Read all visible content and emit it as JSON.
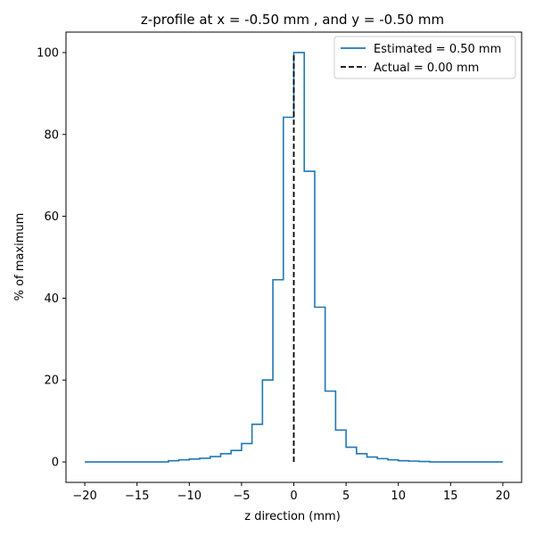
{
  "chart_data": {
    "type": "line",
    "title": "z-profile at x = -0.50 mm , and y = -0.50 mm",
    "xlabel": "z direction (mm)",
    "ylabel": "% of maximum",
    "xlim": [
      -21.8,
      21.8
    ],
    "ylim": [
      -5,
      105
    ],
    "xticks": [
      -20,
      -15,
      -10,
      -5,
      0,
      5,
      10,
      15,
      20
    ],
    "yticks": [
      0,
      20,
      40,
      60,
      80,
      100
    ],
    "grid": false,
    "legend_position": "upper right",
    "series": [
      {
        "name": "Estimated = 0.50 mm",
        "style": "step",
        "color": "#1f77b4",
        "linestyle": "solid",
        "x": [
          -20,
          -19,
          -18,
          -17,
          -16,
          -15,
          -14,
          -13,
          -12,
          -11,
          -10,
          -9,
          -8,
          -7,
          -6,
          -5,
          -4,
          -3,
          -2,
          -1,
          0,
          1,
          2,
          3,
          4,
          5,
          6,
          7,
          8,
          9,
          10,
          11,
          12,
          13,
          14,
          15,
          16,
          17,
          18,
          19,
          20
        ],
        "y": [
          0,
          0,
          0,
          0,
          0,
          0,
          0,
          0,
          0.3,
          0.5,
          0.7,
          0.9,
          1.3,
          2.0,
          2.8,
          4.5,
          9.2,
          20,
          44.5,
          84.2,
          100,
          71,
          37.8,
          17.3,
          7.8,
          3.6,
          2.0,
          1.2,
          0.8,
          0.5,
          0.3,
          0.2,
          0.1,
          0,
          0,
          0,
          0,
          0,
          0,
          0,
          0
        ]
      },
      {
        "name": "Actual = 0.00 mm",
        "style": "vertical",
        "color": "#000000",
        "linestyle": "dashed",
        "x": [
          0,
          0
        ],
        "y": [
          0,
          100
        ]
      }
    ]
  }
}
